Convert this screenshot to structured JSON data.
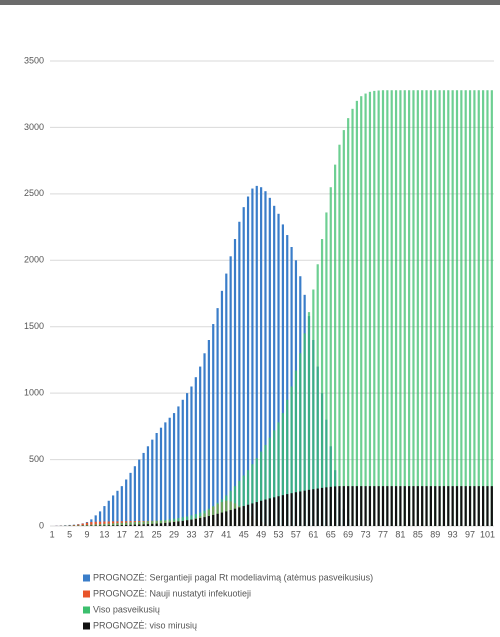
{
  "chart_data": {
    "type": "bar",
    "categories": [
      1,
      null,
      null,
      null,
      5,
      null,
      null,
      null,
      9,
      null,
      null,
      null,
      13,
      null,
      null,
      null,
      17,
      null,
      null,
      null,
      21,
      null,
      null,
      null,
      25,
      null,
      null,
      null,
      29,
      null,
      null,
      null,
      33,
      null,
      null,
      null,
      37,
      null,
      null,
      null,
      41,
      null,
      null,
      null,
      45,
      null,
      null,
      null,
      49,
      null,
      null,
      null,
      53,
      null,
      null,
      null,
      57,
      null,
      null,
      null,
      61,
      null,
      null,
      null,
      65,
      null,
      null,
      null,
      69,
      null,
      null,
      null,
      73,
      null,
      null,
      null,
      77,
      null,
      null,
      null,
      81,
      null,
      null,
      null,
      85,
      null,
      null,
      null,
      89,
      null,
      null,
      null,
      93,
      null,
      null,
      null,
      97,
      null,
      null,
      null,
      101,
      null
    ],
    "series": [
      {
        "name": "PROGNOZĖ: Sergantieji pagal Rt modeliavimą (atėmus pasveikusius)",
        "color": "#3a7dc9",
        "values": [
          0,
          2,
          4,
          6,
          8,
          10,
          14,
          20,
          30,
          50,
          80,
          110,
          150,
          190,
          230,
          265,
          300,
          350,
          400,
          450,
          500,
          550,
          600,
          650,
          700,
          740,
          780,
          815,
          850,
          900,
          950,
          1000,
          1050,
          1120,
          1200,
          1300,
          1400,
          1520,
          1640,
          1770,
          1900,
          2030,
          2160,
          2290,
          2400,
          2480,
          2540,
          2560,
          2550,
          2520,
          2470,
          2410,
          2350,
          2270,
          2190,
          2100,
          2000,
          1880,
          1740,
          1580,
          1400,
          1200,
          1000,
          800,
          600,
          420,
          250,
          130,
          50,
          0,
          0,
          0,
          0,
          0,
          0,
          0,
          0,
          0,
          0,
          0,
          0,
          0,
          0,
          0,
          0,
          0,
          0,
          0,
          0,
          0,
          0,
          0,
          0,
          0,
          0,
          0,
          0,
          0,
          0,
          0,
          0,
          0
        ]
      },
      {
        "name": "PROGNOZĖ: Nauji nustatyti infekuotieji",
        "color": "#e8542a",
        "values": [
          0,
          1,
          2,
          3,
          5,
          8,
          12,
          18,
          25,
          30,
          32,
          33,
          34,
          34,
          35,
          35,
          36,
          36,
          37,
          37,
          38,
          38,
          38,
          39,
          39,
          39,
          40,
          40,
          40,
          40,
          40,
          45,
          50,
          60,
          75,
          95,
          120,
          145,
          165,
          180,
          190,
          185,
          170,
          150,
          125,
          100,
          75,
          50,
          30,
          15,
          5,
          0,
          0,
          0,
          0,
          0,
          0,
          0,
          0,
          0,
          0,
          0,
          0,
          0,
          0,
          0,
          0,
          0,
          0,
          0,
          0,
          0,
          0,
          0,
          0,
          0,
          0,
          0,
          0,
          0,
          0,
          0,
          0,
          0,
          0,
          0,
          0,
          0,
          0,
          0,
          0,
          0,
          0,
          0,
          0,
          0,
          0,
          0,
          0,
          0,
          0,
          0
        ]
      },
      {
        "name": "Viso pasveikusių",
        "color": "#3cbf6e",
        "values": [
          0,
          0,
          1,
          2,
          3,
          4,
          5,
          6,
          8,
          10,
          12,
          14,
          16,
          18,
          20,
          22,
          24,
          26,
          28,
          30,
          32,
          34,
          36,
          38,
          40,
          43,
          46,
          50,
          55,
          60,
          66,
          72,
          80,
          90,
          100,
          115,
          130,
          150,
          175,
          200,
          230,
          265,
          300,
          340,
          380,
          420,
          465,
          510,
          560,
          610,
          665,
          720,
          780,
          850,
          950,
          1050,
          1170,
          1300,
          1450,
          1610,
          1780,
          1970,
          2160,
          2360,
          2550,
          2720,
          2870,
          2980,
          3070,
          3140,
          3200,
          3235,
          3255,
          3268,
          3275,
          3278,
          3280,
          3280,
          3280,
          3280,
          3280,
          3280,
          3280,
          3280,
          3280,
          3280,
          3280,
          3280,
          3280,
          3280,
          3280,
          3280,
          3280,
          3280,
          3280,
          3280,
          3280,
          3280,
          3280,
          3280,
          3280,
          3280
        ]
      },
      {
        "name": "PROGNOZĖ: viso mirusių",
        "color": "#111111",
        "values": [
          0,
          0,
          0,
          0,
          1,
          1,
          1,
          2,
          2,
          3,
          3,
          4,
          4,
          5,
          5,
          6,
          7,
          8,
          9,
          10,
          11,
          12,
          14,
          16,
          18,
          20,
          23,
          26,
          30,
          34,
          38,
          43,
          48,
          54,
          60,
          67,
          75,
          83,
          92,
          101,
          110,
          120,
          130,
          140,
          150,
          160,
          170,
          180,
          190,
          199,
          208,
          216,
          224,
          232,
          240,
          247,
          254,
          260,
          266,
          272,
          277,
          282,
          287,
          291,
          295,
          298,
          300,
          300,
          300,
          300,
          300,
          300,
          300,
          300,
          300,
          300,
          300,
          300,
          300,
          300,
          300,
          300,
          300,
          300,
          300,
          300,
          300,
          300,
          300,
          300,
          300,
          300,
          300,
          300,
          300,
          300,
          300,
          300,
          300,
          300,
          300,
          300
        ]
      }
    ],
    "ylim": [
      0,
      3500
    ],
    "yticks": [
      0,
      500,
      1000,
      1500,
      2000,
      2500,
      3000,
      3500
    ],
    "grid": true,
    "legend": "bottom"
  }
}
